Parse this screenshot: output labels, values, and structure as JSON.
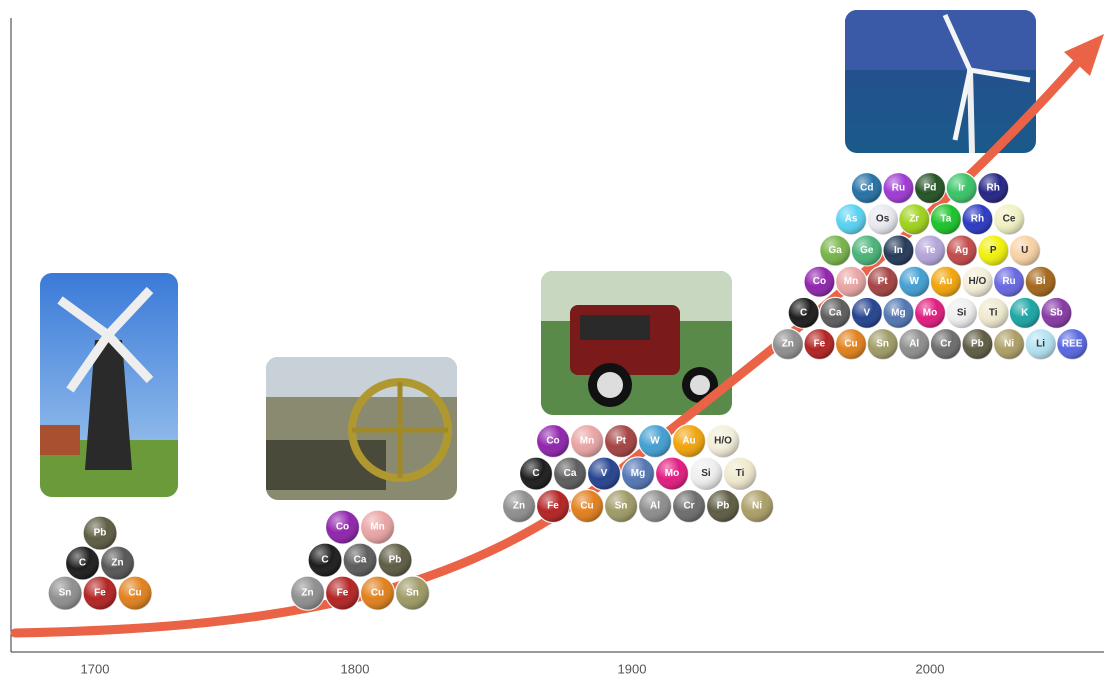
{
  "timeline": {
    "years": [
      "1700",
      "1800",
      "1900",
      "2000"
    ],
    "eras": [
      {
        "rows": [
          [
            {
              "label": "Pb",
              "color": "#56543a"
            }
          ],
          [
            {
              "label": "C",
              "color": "#111111"
            },
            {
              "label": "Zn",
              "color": "#4e4e4e"
            }
          ],
          [
            {
              "label": "Sn",
              "color": "#8a8a8a"
            },
            {
              "label": "Fe",
              "color": "#b01818"
            },
            {
              "label": "Cu",
              "color": "#e07a12"
            }
          ]
        ]
      },
      {
        "rows": [
          [
            {
              "label": "Co",
              "color": "#8a1aa8"
            },
            {
              "label": "Mn",
              "color": "#e8a0a0"
            }
          ],
          [
            {
              "label": "C",
              "color": "#111111"
            },
            {
              "label": "Ca",
              "color": "#555555"
            },
            {
              "label": "Pb",
              "color": "#56543a"
            }
          ],
          [
            {
              "label": "Zn",
              "color": "#8a8a8a"
            },
            {
              "label": "Fe",
              "color": "#b01818"
            },
            {
              "label": "Cu",
              "color": "#e07a12"
            },
            {
              "label": "Sn",
              "color": "#9a9660"
            }
          ]
        ]
      },
      {
        "rows": [
          [
            {
              "label": "Co",
              "color": "#8a1aa8"
            },
            {
              "label": "Mn",
              "color": "#e8a0a0"
            },
            {
              "label": "Pt",
              "color": "#a03a3a"
            },
            {
              "label": "W",
              "color": "#3a9ad0"
            },
            {
              "label": "Au",
              "color": "#f0a000"
            },
            {
              "label": "H/O",
              "color": "#f2eed8"
            }
          ],
          [
            {
              "label": "C",
              "color": "#111111"
            },
            {
              "label": "Ca",
              "color": "#555555"
            },
            {
              "label": "V",
              "color": "#1a3a8a"
            },
            {
              "label": "Mg",
              "color": "#4a70b0"
            },
            {
              "label": "Mo",
              "color": "#e0107a"
            },
            {
              "label": "Si",
              "color": "#eeeeee"
            },
            {
              "label": "Ti",
              "color": "#eee8cc"
            }
          ],
          [
            {
              "label": "Zn",
              "color": "#8a8a8a"
            },
            {
              "label": "Fe",
              "color": "#b01818"
            },
            {
              "label": "Cu",
              "color": "#e07a12"
            },
            {
              "label": "Sn",
              "color": "#9a9660"
            },
            {
              "label": "Al",
              "color": "#888888"
            },
            {
              "label": "Cr",
              "color": "#666666"
            },
            {
              "label": "Pb",
              "color": "#56543a"
            },
            {
              "label": "Ni",
              "color": "#a89a60"
            }
          ]
        ]
      },
      {
        "rows": [
          [
            {
              "label": "Cd",
              "color": "#1a6aa0"
            },
            {
              "label": "Ru",
              "color": "#9a30d0"
            },
            {
              "label": "Pd",
              "color": "#1a4a1a"
            },
            {
              "label": "Ir",
              "color": "#30c060"
            },
            {
              "label": "Rh",
              "color": "#1a1a80"
            }
          ],
          [
            {
              "label": "As",
              "color": "#50d0f0"
            },
            {
              "label": "Os",
              "color": "#e8e8f0"
            },
            {
              "label": "Zr",
              "color": "#9ad010"
            },
            {
              "label": "Ta",
              "color": "#10c020"
            },
            {
              "label": "Rh",
              "color": "#2030c0"
            },
            {
              "label": "Ce",
              "color": "#f0f0c0"
            }
          ],
          [
            {
              "label": "Ga",
              "color": "#70b040"
            },
            {
              "label": "Ge",
              "color": "#40b070"
            },
            {
              "label": "In",
              "color": "#1a3050"
            },
            {
              "label": "Te",
              "color": "#b0a0d8"
            },
            {
              "label": "Ag",
              "color": "#c04040"
            },
            {
              "label": "P",
              "color": "#f0f000"
            },
            {
              "label": "U",
              "color": "#f8d0a0"
            }
          ],
          [
            {
              "label": "Co",
              "color": "#8a1aa8"
            },
            {
              "label": "Mn",
              "color": "#e8a0a0"
            },
            {
              "label": "Pt",
              "color": "#a03a3a"
            },
            {
              "label": "W",
              "color": "#3a9ad0"
            },
            {
              "label": "Au",
              "color": "#f0a000"
            },
            {
              "label": "H/O",
              "color": "#f2eed8"
            },
            {
              "label": "Ru",
              "color": "#6060e0"
            },
            {
              "label": "Bi",
              "color": "#a06010"
            }
          ],
          [
            {
              "label": "C",
              "color": "#111111"
            },
            {
              "label": "Ca",
              "color": "#555555"
            },
            {
              "label": "V",
              "color": "#1a3a8a"
            },
            {
              "label": "Mg",
              "color": "#4a70b0"
            },
            {
              "label": "Mo",
              "color": "#e0107a"
            },
            {
              "label": "Si",
              "color": "#eeeeee"
            },
            {
              "label": "Ti",
              "color": "#eee8cc"
            },
            {
              "label": "K",
              "color": "#10a0a0"
            },
            {
              "label": "Sb",
              "color": "#8030a0"
            }
          ],
          [
            {
              "label": "Zn",
              "color": "#8a8a8a"
            },
            {
              "label": "Fe",
              "color": "#b01818"
            },
            {
              "label": "Cu",
              "color": "#e07a12"
            },
            {
              "label": "Sn",
              "color": "#9a9660"
            },
            {
              "label": "Al",
              "color": "#888888"
            },
            {
              "label": "Cr",
              "color": "#666666"
            },
            {
              "label": "Pb",
              "color": "#56543a"
            },
            {
              "label": "Ni",
              "color": "#a89a60"
            },
            {
              "label": "Li",
              "color": "#b0e0f0"
            },
            {
              "label": "REE",
              "color": "#5060e0"
            }
          ]
        ]
      }
    ]
  }
}
